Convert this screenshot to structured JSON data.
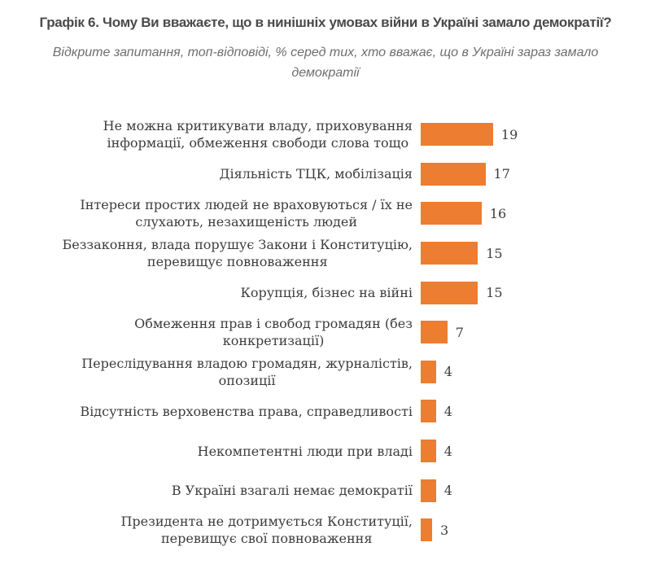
{
  "header": {
    "title": "Графік 6. Чому Ви вважаєте, що в нинішніх умовах війни в Україні замало демократії?",
    "subtitle": "Відкрите запитання, топ-відповіді, % серед тих, хто вважає, що в Україні зараз замало демократії"
  },
  "colors": {
    "bar": "#ED7D31",
    "title_text": "#4A4A4C",
    "subtitle_text": "#6E6E6E",
    "label_text": "#3D3D3D"
  },
  "chart_data": {
    "type": "bar",
    "orientation": "horizontal",
    "title": "Графік 6. Чому Ви вважаєте, що в нинішніх умовах війни в Україні замало демократії?",
    "subtitle": "Відкрите запитання, топ-відповіді, % серед тих, хто вважає, що в Україні зараз замало демократії",
    "xlabel": "",
    "ylabel": "",
    "xlim": [
      0,
      20
    ],
    "grid": false,
    "legend": false,
    "axis_lines": false,
    "data_labels": "outside-end",
    "categories": [
      "Не можна критикувати владу, приховування інформації, обмеження свободи слова тощо",
      "Діяльність ТЦК, мобілізація",
      "Інтереси простих людей не враховуються / їх не слухають, незахищеність людей",
      "Беззаконня, влада порушує Закони і Конституцію, перевищує повноваження",
      "Корупція, бізнес на війні",
      "Обмеження прав і свобод громадян (без конкретизації)",
      "Переслідування владою громадян, журналістів, опозиції",
      "Відсутність верховенства права, справедливості",
      "Некомпетентні люди при владі",
      "В Україні взагалі немає демократії",
      "Президента не дотримується Конституції, перевищує свої повноваження"
    ],
    "category_lines": [
      [
        "Не можна критикувати владу, приховування",
        "інформації, обмеження свободи слова тощо"
      ],
      [
        "Діяльність ТЦК, мобілізація"
      ],
      [
        "Інтереси простих людей не враховуються / їх не",
        "слухають, незахищеність людей"
      ],
      [
        "Беззаконня, влада порушує Закони і Конституцію,",
        "перевищує повноваження"
      ],
      [
        "Корупція, бізнес на війні"
      ],
      [
        "Обмеження прав і свобод громадян (без",
        "конкретизації)"
      ],
      [
        "Переслідування владою громадян, журналістів,",
        "опозиції"
      ],
      [
        "Відсутність верховенства права, справедливості"
      ],
      [
        "Некомпетентні люди при владі"
      ],
      [
        "В Україні взагалі немає демократії"
      ],
      [
        "Президента не дотримується Конституції,",
        "перевищує свої повноваження"
      ]
    ],
    "values": [
      19,
      17,
      16,
      15,
      15,
      7,
      4,
      4,
      4,
      4,
      3
    ]
  }
}
